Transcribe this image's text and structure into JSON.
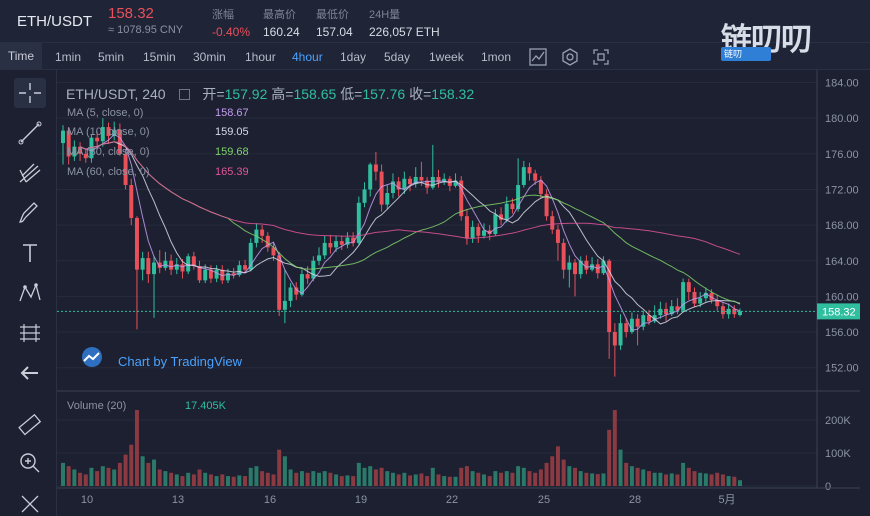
{
  "ticker": {
    "pair": "ETH/USDT",
    "price": "158.32",
    "price_cny": "≈ 1078.95 CNY",
    "change_label": "涨幅",
    "change_value": "-0.40%",
    "high_label": "最高价",
    "high_value": "160.24",
    "low_label": "最低价",
    "low_value": "157.04",
    "volume_label": "24H量",
    "volume_value": "226,057 ETH"
  },
  "logo": {
    "text": "链叨叨",
    "sub": "链叨"
  },
  "toolbar": {
    "time_label": "Time",
    "intervals": [
      "1min",
      "5min",
      "15min",
      "30min",
      "1hour",
      "4hour",
      "1day",
      "5day",
      "1week",
      "1mon"
    ],
    "active_interval": "4hour"
  },
  "chart_header": {
    "symbol": "ETH/USDT, 240",
    "open_label": "开=",
    "open": "157.92",
    "high_label": "高=",
    "high": "158.65",
    "low_label": "低=",
    "low": "157.76",
    "close_label": "收=",
    "close": "158.32"
  },
  "indicators": [
    {
      "label": "MA (5, close, 0)",
      "value": "158.67",
      "color": "#c59cf0"
    },
    {
      "label": "MA (10, close, 0)",
      "value": "159.05",
      "color": "#d7dbe8"
    },
    {
      "label": "MA (30, close, 0)",
      "value": "159.68",
      "color": "#7fd16b"
    },
    {
      "label": "MA (60, close, 0)",
      "value": "165.39",
      "color": "#e0559a"
    }
  ],
  "volume_legend": {
    "label": "Volume (20)",
    "value": "17.405K"
  },
  "watermark": "Chart by TradingView",
  "chart_data": {
    "type": "candlestick",
    "title": "ETH/USDT, 240",
    "price_axis": {
      "ticks": [
        "184.00",
        "180.00",
        "176.00",
        "172.00",
        "168.00",
        "164.00",
        "160.00",
        "156.00",
        "152.00"
      ],
      "range": [
        149.5,
        185.4
      ]
    },
    "volume_axis": {
      "ticks": [
        "200K",
        "100K",
        "0"
      ],
      "range": [
        0,
        230
      ]
    },
    "x_ticks": [
      "10",
      "13",
      "16",
      "19",
      "22",
      "25",
      "28",
      "5月"
    ],
    "last_price": 158.32,
    "colors": {
      "up": "#2fbf9f",
      "down": "#e9505a",
      "volume_up": "#2a7a6a",
      "volume_down": "#8c3a42",
      "last_price_line": "#2fbf9f"
    },
    "candles": [
      [
        177.2,
        178.6,
        179.2,
        174.8,
        70
      ],
      [
        178.6,
        175.7,
        179.0,
        174.8,
        60
      ],
      [
        175.7,
        176.8,
        177.5,
        175.2,
        50
      ],
      [
        176.8,
        176.0,
        177.3,
        175.2,
        40
      ],
      [
        176.0,
        175.5,
        176.6,
        175.0,
        35
      ],
      [
        175.5,
        177.8,
        178.2,
        175.0,
        55
      ],
      [
        177.8,
        177.4,
        178.5,
        176.5,
        45
      ],
      [
        177.4,
        179.0,
        180.0,
        176.8,
        60
      ],
      [
        179.0,
        178.0,
        179.5,
        177.2,
        55
      ],
      [
        178.0,
        178.7,
        179.6,
        177.5,
        50
      ],
      [
        178.7,
        176.0,
        179.4,
        175.8,
        70
      ],
      [
        176.0,
        172.5,
        176.5,
        172.0,
        95
      ],
      [
        172.5,
        168.8,
        173.2,
        168.0,
        125
      ],
      [
        168.8,
        163.0,
        169.0,
        156.3,
        230
      ],
      [
        163.0,
        164.3,
        165.0,
        161.8,
        90
      ],
      [
        164.3,
        162.5,
        165.0,
        161.5,
        70
      ],
      [
        162.5,
        163.8,
        164.5,
        157.6,
        80
      ],
      [
        163.8,
        163.2,
        165.2,
        162.6,
        50
      ],
      [
        163.2,
        164.0,
        165.0,
        162.9,
        45
      ],
      [
        164.0,
        163.0,
        164.7,
        162.4,
        40
      ],
      [
        163.0,
        163.6,
        164.3,
        162.5,
        35
      ],
      [
        163.6,
        162.8,
        164.2,
        162.0,
        30
      ],
      [
        162.8,
        164.5,
        164.8,
        162.5,
        40
      ],
      [
        164.5,
        163.4,
        165.0,
        163.0,
        35
      ],
      [
        163.4,
        161.8,
        164.0,
        161.5,
        50
      ],
      [
        161.8,
        163.0,
        163.6,
        161.5,
        40
      ],
      [
        163.0,
        162.0,
        163.5,
        161.5,
        35
      ],
      [
        162.0,
        163.0,
        163.5,
        161.6,
        30
      ],
      [
        163.0,
        161.8,
        163.5,
        161.4,
        35
      ],
      [
        161.8,
        162.6,
        163.1,
        161.5,
        30
      ],
      [
        162.6,
        162.4,
        163.2,
        162.0,
        28
      ],
      [
        162.4,
        163.5,
        164.0,
        162.2,
        32
      ],
      [
        163.5,
        163.0,
        164.1,
        162.6,
        30
      ],
      [
        163.0,
        166.0,
        166.5,
        162.8,
        55
      ],
      [
        166.0,
        167.5,
        168.2,
        165.5,
        60
      ],
      [
        167.5,
        166.8,
        168.0,
        166.0,
        45
      ],
      [
        166.8,
        165.5,
        167.2,
        165.0,
        40
      ],
      [
        165.5,
        164.6,
        166.0,
        164.0,
        35
      ],
      [
        164.6,
        158.5,
        165.0,
        157.8,
        110
      ],
      [
        158.5,
        159.5,
        163.0,
        157.0,
        90
      ],
      [
        159.5,
        161.0,
        161.5,
        158.8,
        50
      ],
      [
        161.0,
        160.2,
        161.6,
        159.6,
        40
      ],
      [
        160.2,
        162.5,
        163.0,
        160.0,
        45
      ],
      [
        162.5,
        162.0,
        163.4,
        161.4,
        40
      ],
      [
        162.0,
        164.0,
        164.5,
        161.7,
        45
      ],
      [
        164.0,
        164.6,
        165.5,
        163.5,
        40
      ],
      [
        164.6,
        166.0,
        166.8,
        164.2,
        45
      ],
      [
        166.0,
        165.5,
        166.9,
        164.8,
        40
      ],
      [
        165.5,
        166.2,
        166.8,
        165.0,
        35
      ],
      [
        166.2,
        165.8,
        166.8,
        165.2,
        30
      ],
      [
        165.8,
        166.6,
        167.2,
        165.4,
        32
      ],
      [
        166.6,
        166.0,
        167.2,
        165.6,
        30
      ],
      [
        166.0,
        170.5,
        171.2,
        165.8,
        70
      ],
      [
        170.5,
        172.0,
        172.8,
        170.0,
        55
      ],
      [
        172.0,
        174.8,
        175.0,
        171.2,
        60
      ],
      [
        174.8,
        174.0,
        176.2,
        173.0,
        50
      ],
      [
        174.0,
        170.3,
        174.8,
        169.5,
        55
      ],
      [
        170.3,
        171.6,
        172.5,
        169.8,
        45
      ],
      [
        171.6,
        172.9,
        173.8,
        171.0,
        40
      ],
      [
        172.9,
        172.0,
        173.4,
        171.2,
        35
      ],
      [
        172.0,
        173.2,
        174.0,
        171.5,
        40
      ],
      [
        173.2,
        172.6,
        173.5,
        171.8,
        32
      ],
      [
        172.6,
        173.4,
        174.5,
        172.2,
        35
      ],
      [
        173.4,
        173.0,
        175.1,
        172.4,
        38
      ],
      [
        173.0,
        172.2,
        173.4,
        171.5,
        30
      ],
      [
        172.2,
        173.4,
        177.0,
        172.0,
        55
      ],
      [
        173.4,
        172.8,
        174.2,
        172.2,
        35
      ],
      [
        172.8,
        173.2,
        173.8,
        172.5,
        30
      ],
      [
        173.2,
        172.4,
        173.5,
        171.8,
        28
      ],
      [
        172.4,
        173.0,
        173.8,
        172.2,
        28
      ],
      [
        173.0,
        169.0,
        173.5,
        168.5,
        55
      ],
      [
        169.0,
        166.5,
        169.8,
        165.8,
        60
      ],
      [
        166.5,
        167.8,
        168.5,
        166.0,
        45
      ],
      [
        167.8,
        166.8,
        168.2,
        166.0,
        40
      ],
      [
        166.8,
        167.4,
        168.2,
        166.5,
        35
      ],
      [
        167.4,
        167.0,
        168.0,
        166.3,
        30
      ],
      [
        167.0,
        169.2,
        169.8,
        166.8,
        45
      ],
      [
        169.2,
        168.6,
        170.0,
        168.0,
        40
      ],
      [
        168.6,
        170.4,
        171.2,
        168.3,
        45
      ],
      [
        170.4,
        169.8,
        171.0,
        169.3,
        40
      ],
      [
        169.8,
        172.5,
        175.5,
        169.5,
        60
      ],
      [
        172.5,
        174.5,
        175.2,
        172.2,
        55
      ],
      [
        174.5,
        173.8,
        175.0,
        173.0,
        45
      ],
      [
        173.8,
        173.0,
        174.2,
        172.5,
        40
      ],
      [
        173.0,
        171.5,
        173.5,
        171.0,
        50
      ],
      [
        171.5,
        169.0,
        172.0,
        168.5,
        70
      ],
      [
        169.0,
        167.5,
        169.6,
        167.0,
        90
      ],
      [
        167.5,
        166.0,
        168.0,
        164.0,
        120
      ],
      [
        166.0,
        163.0,
        166.5,
        162.0,
        80
      ],
      [
        163.0,
        163.8,
        164.6,
        161.0,
        60
      ],
      [
        163.8,
        162.5,
        164.2,
        160.0,
        55
      ],
      [
        162.5,
        164.0,
        164.5,
        162.0,
        45
      ],
      [
        164.0,
        163.0,
        164.6,
        162.5,
        40
      ],
      [
        163.0,
        163.6,
        164.4,
        162.8,
        38
      ],
      [
        163.6,
        162.6,
        164.2,
        162.0,
        36
      ],
      [
        162.6,
        164.0,
        164.5,
        162.4,
        38
      ],
      [
        164.0,
        156.0,
        164.2,
        153.0,
        170
      ],
      [
        156.0,
        154.5,
        157.0,
        151.0,
        230
      ],
      [
        154.5,
        157.0,
        158.0,
        154.0,
        110
      ],
      [
        157.0,
        156.0,
        157.6,
        155.4,
        70
      ],
      [
        156.0,
        157.5,
        158.2,
        155.8,
        60
      ],
      [
        157.5,
        156.6,
        158.0,
        154.5,
        55
      ],
      [
        156.6,
        157.9,
        158.4,
        156.2,
        50
      ],
      [
        157.9,
        157.2,
        158.5,
        156.8,
        45
      ],
      [
        157.2,
        157.9,
        159.0,
        157.0,
        40
      ],
      [
        157.9,
        158.6,
        159.4,
        157.5,
        40
      ],
      [
        158.6,
        158.0,
        159.3,
        157.2,
        35
      ],
      [
        158.0,
        158.9,
        159.6,
        157.8,
        38
      ],
      [
        158.9,
        158.4,
        159.8,
        158.0,
        35
      ],
      [
        158.4,
        161.6,
        162.0,
        158.2,
        70
      ],
      [
        161.6,
        160.5,
        162.0,
        159.6,
        55
      ],
      [
        160.5,
        159.2,
        161.0,
        158.8,
        45
      ],
      [
        159.2,
        159.8,
        160.5,
        158.8,
        40
      ],
      [
        159.8,
        160.4,
        161.0,
        159.4,
        38
      ],
      [
        160.4,
        159.6,
        160.8,
        159.2,
        35
      ],
      [
        159.6,
        158.9,
        160.2,
        158.4,
        40
      ],
      [
        158.9,
        158.0,
        159.4,
        157.5,
        35
      ],
      [
        158.0,
        158.6,
        159.2,
        157.5,
        30
      ],
      [
        158.6,
        158.0,
        159.0,
        157.6,
        28
      ],
      [
        157.92,
        158.32,
        158.65,
        157.76,
        17.4
      ]
    ]
  }
}
